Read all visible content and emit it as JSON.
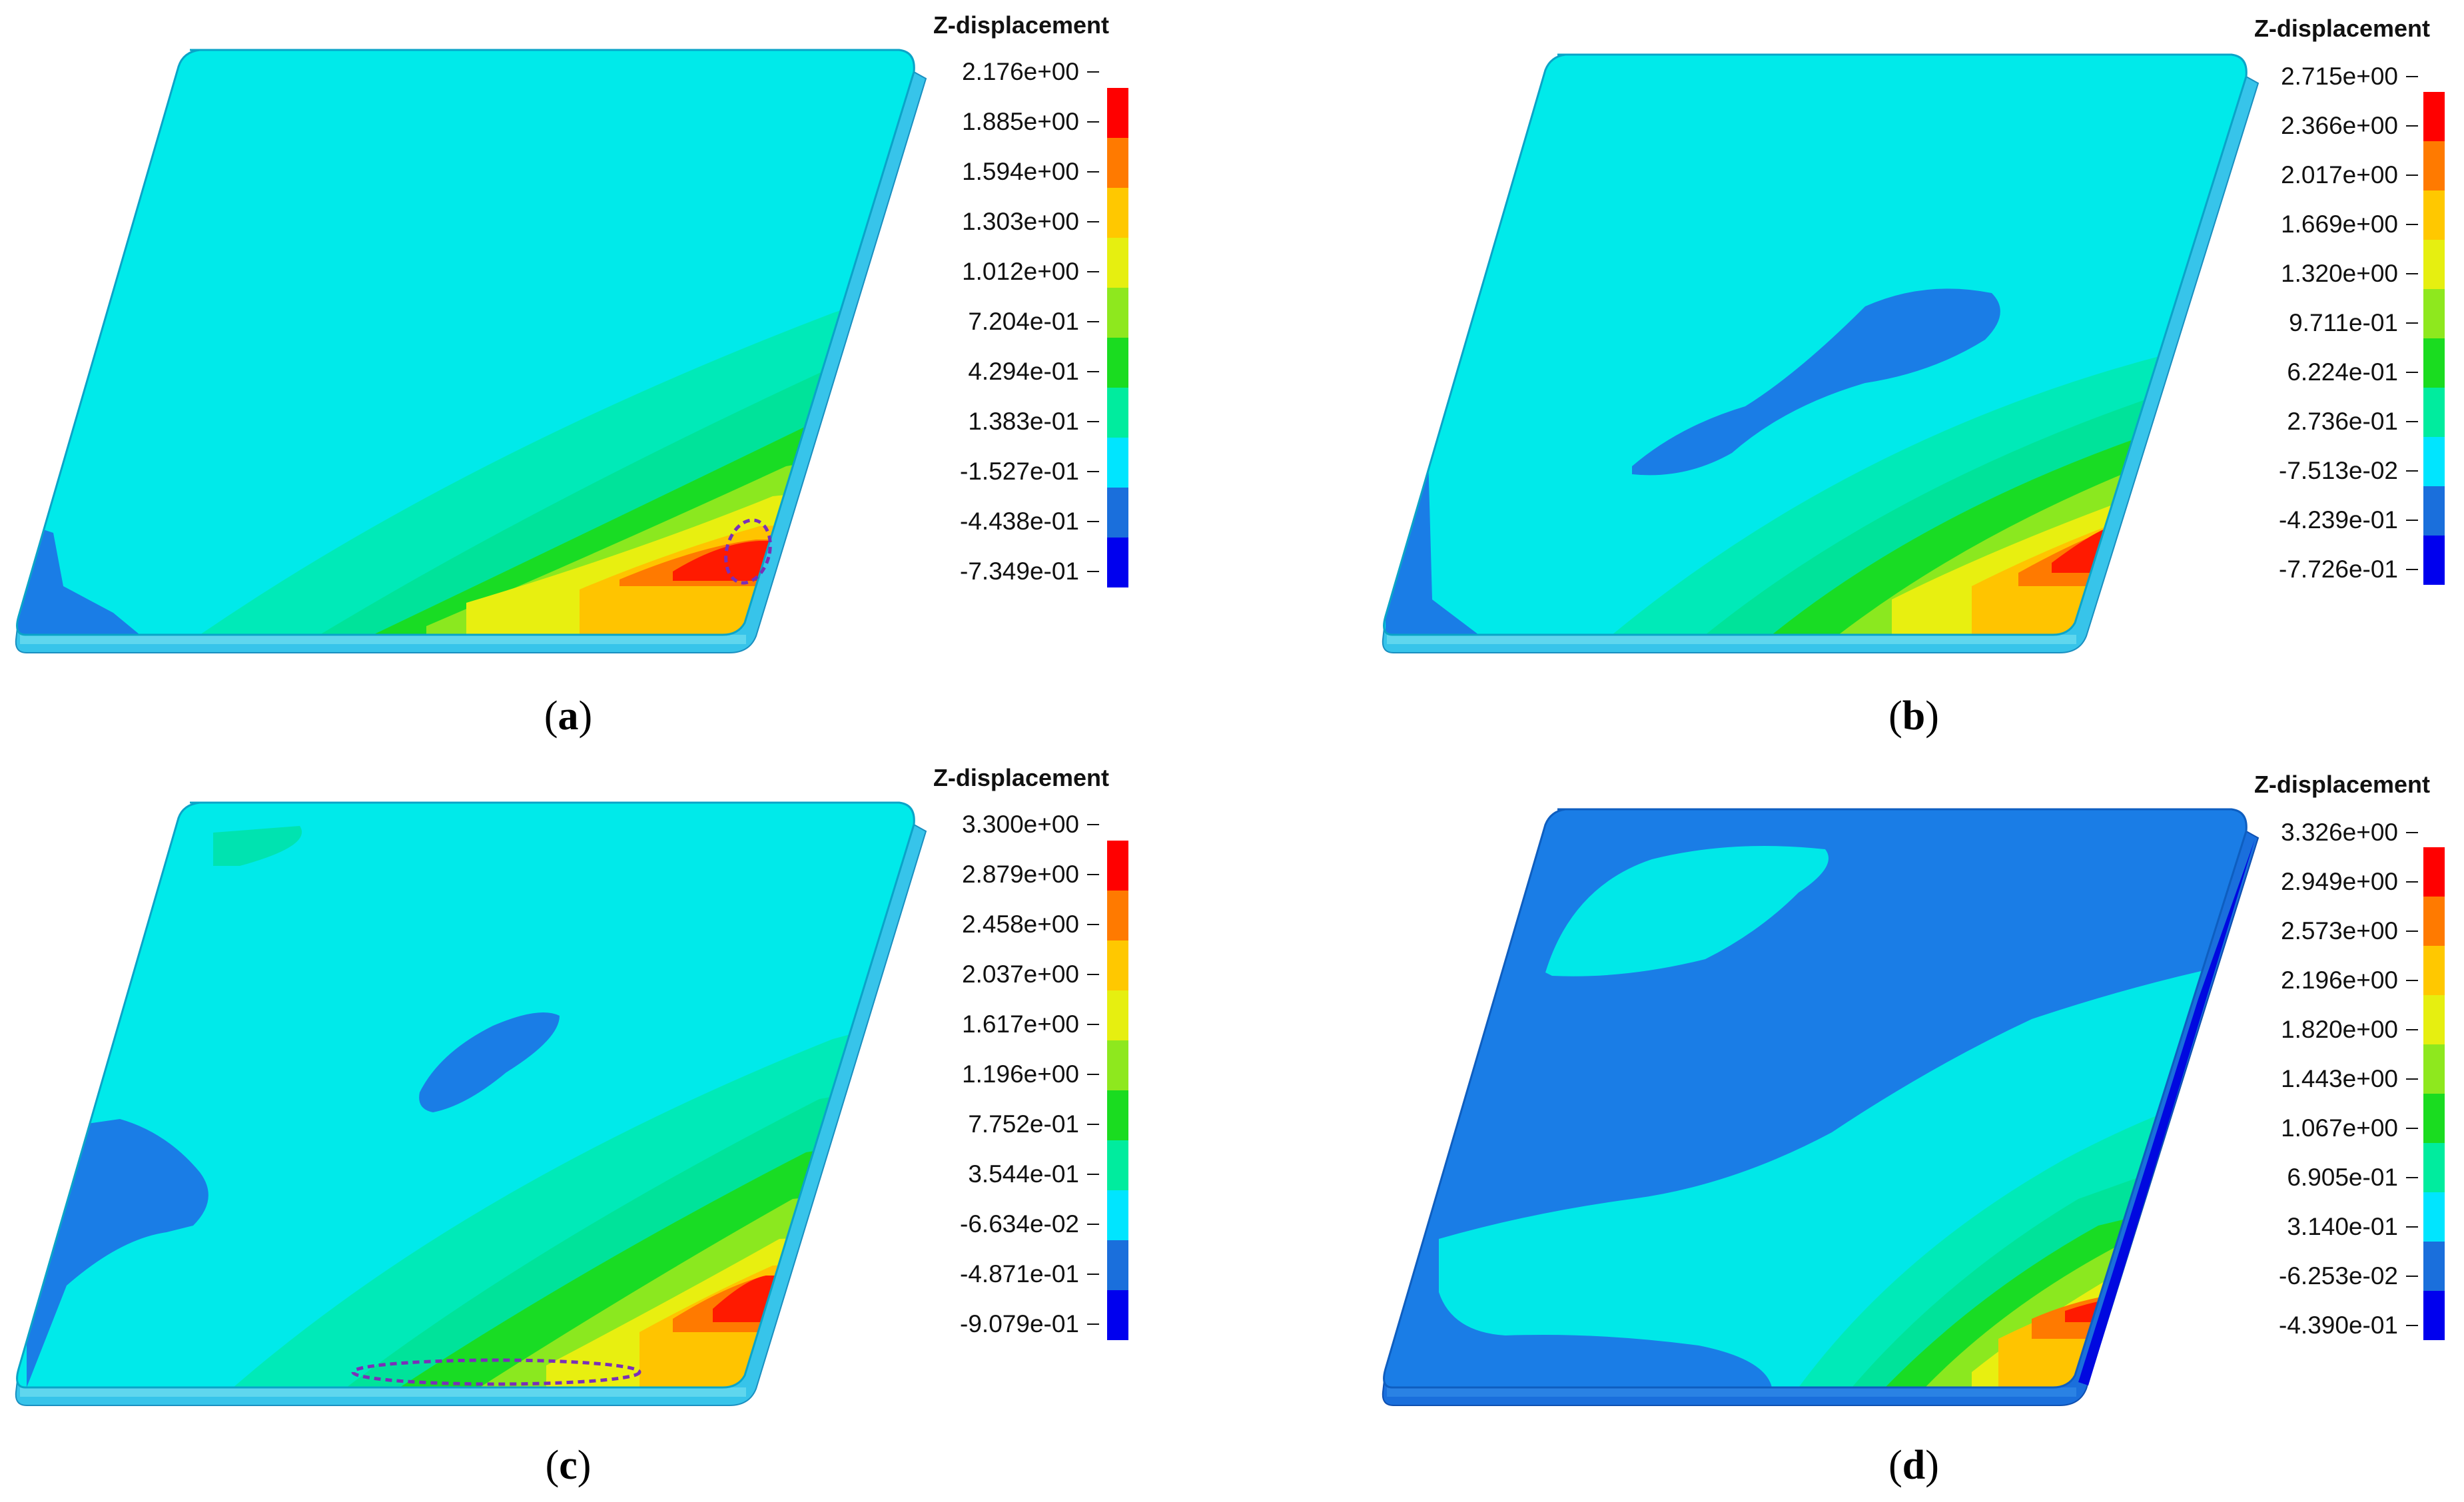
{
  "colors": {
    "level_colors": [
      "#0000ee",
      "#1a6fdc",
      "#00e5ff",
      "#00ec9e",
      "#1adc20",
      "#8ee81e",
      "#e6ef10",
      "#ffc800",
      "#ff7a00",
      "#ff0000"
    ],
    "field_base": "#00eaea",
    "field_mid": "#0cbde8",
    "field_blue": "#1878e6",
    "edge_side": "#4fc0ea",
    "markup_ellipse": "#7a2fb8"
  },
  "panels": [
    {
      "id": "a",
      "caption_letter": "a",
      "legend": {
        "title": "Z-displacement",
        "values": [
          "2.176e+00",
          "1.885e+00",
          "1.594e+00",
          "1.303e+00",
          "1.012e+00",
          "7.204e-01",
          "4.294e-01",
          "1.383e-01",
          "-1.527e-01",
          "-4.438e-01",
          "-7.349e-01"
        ]
      }
    },
    {
      "id": "b",
      "caption_letter": "b",
      "legend": {
        "title": "Z-displacement",
        "values": [
          "2.715e+00",
          "2.366e+00",
          "2.017e+00",
          "1.669e+00",
          "1.320e+00",
          "9.711e-01",
          "6.224e-01",
          "2.736e-01",
          "-7.513e-02",
          "-4.239e-01",
          "-7.726e-01"
        ]
      }
    },
    {
      "id": "c",
      "caption_letter": "c",
      "legend": {
        "title": "Z-displacement",
        "values": [
          "3.300e+00",
          "2.879e+00",
          "2.458e+00",
          "2.037e+00",
          "1.617e+00",
          "1.196e+00",
          "7.752e-01",
          "3.544e-01",
          "-6.634e-02",
          "-4.871e-01",
          "-9.079e-01"
        ]
      }
    },
    {
      "id": "d",
      "caption_letter": "d",
      "legend": {
        "title": "Z-displacement",
        "values": [
          "3.326e+00",
          "2.949e+00",
          "2.573e+00",
          "2.196e+00",
          "1.820e+00",
          "1.443e+00",
          "1.067e+00",
          "6.905e-01",
          "3.140e-01",
          "-6.253e-02",
          "-4.390e-01"
        ]
      }
    }
  ]
}
